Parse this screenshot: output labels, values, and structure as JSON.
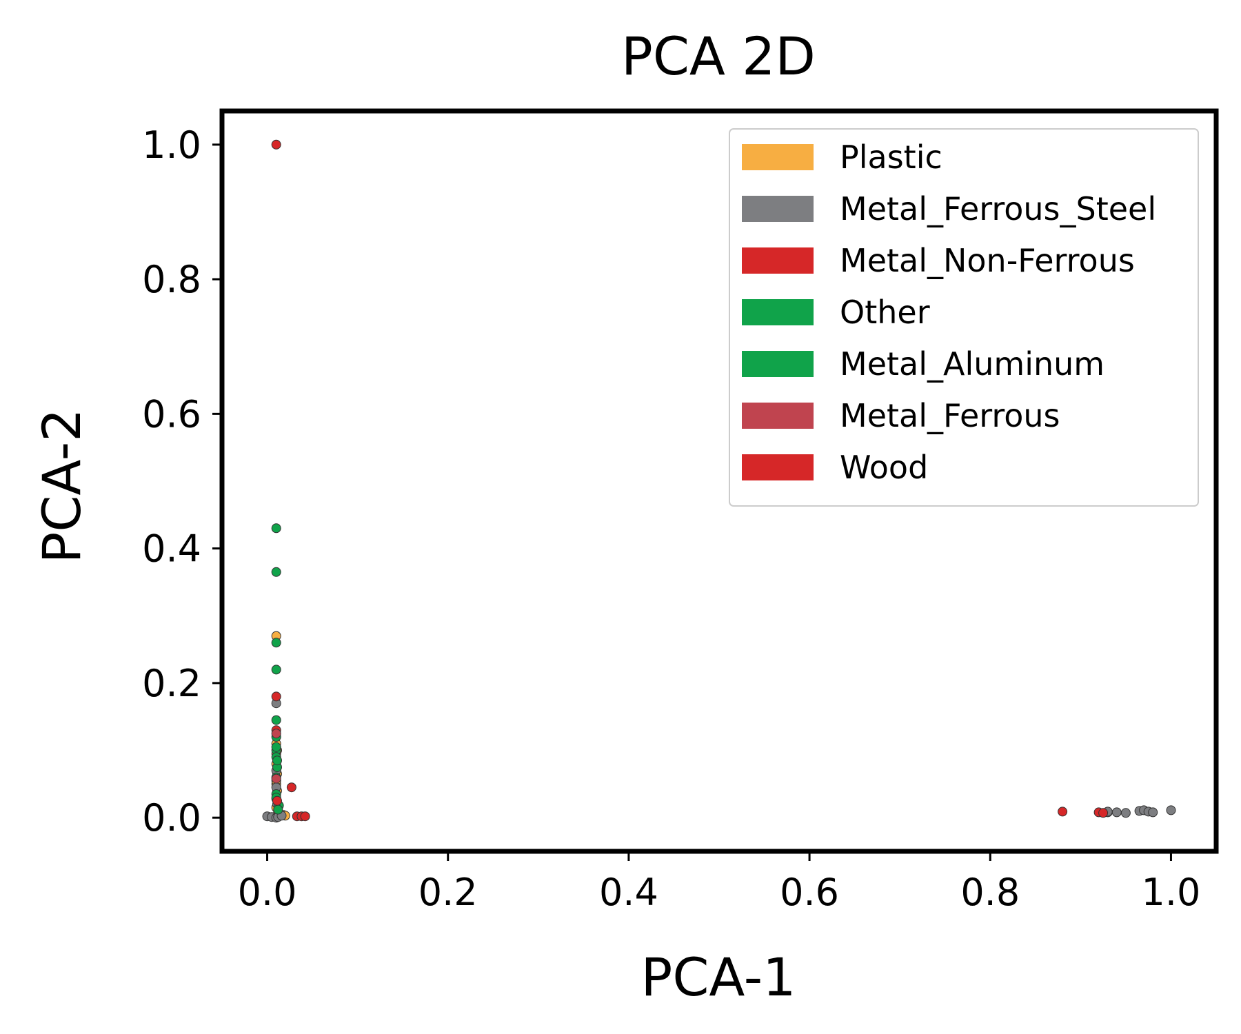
{
  "chart_data": {
    "type": "scatter",
    "title": "PCA 2D",
    "xlabel": "PCA-1",
    "ylabel": "PCA-2",
    "xlim": [
      -0.05,
      1.05
    ],
    "ylim": [
      -0.05,
      1.05
    ],
    "xticks": [
      "0.0",
      "0.2",
      "0.4",
      "0.6",
      "0.8",
      "1.0"
    ],
    "yticks": [
      "0.0",
      "0.2",
      "0.4",
      "0.6",
      "0.8",
      "1.0"
    ],
    "grid": false,
    "legend_position": "top-right",
    "legend": [
      {
        "label": "Plastic",
        "color": "#f7ae42"
      },
      {
        "label": "Metal_Ferrous_Steel",
        "color": "#7d7e81"
      },
      {
        "label": "Metal_Non-Ferrous",
        "color": "#d62728"
      },
      {
        "label": "Other",
        "color": "#10a34a"
      },
      {
        "label": "Metal_Aluminum",
        "color": "#10a34a"
      },
      {
        "label": "Metal_Ferrous",
        "color": "#c0444f"
      },
      {
        "label": "Wood",
        "color": "#d62728"
      }
    ],
    "series": [
      {
        "name": "Plastic",
        "color": "#f7ae42",
        "points": [
          [
            0.01,
            0.27
          ],
          [
            0.01,
            0.11
          ],
          [
            0.01,
            0.095
          ],
          [
            0.01,
            0.08
          ],
          [
            0.011,
            0.065
          ],
          [
            0.01,
            0.05
          ],
          [
            0.011,
            0.04
          ],
          [
            0.01,
            0.028
          ],
          [
            0.01,
            0.015
          ],
          [
            0.012,
            0.008
          ],
          [
            0.018,
            0.004
          ],
          [
            0.02,
            0.003
          ],
          [
            0.011,
            0.1
          ],
          [
            0.01,
            0.055
          ]
        ]
      },
      {
        "name": "Metal_Ferrous_Steel",
        "color": "#7d7e81",
        "points": [
          [
            0.01,
            0.17
          ],
          [
            0.01,
            0.07
          ],
          [
            0.01,
            0.045
          ],
          [
            0.011,
            0.02
          ],
          [
            0.0,
            0.002
          ],
          [
            0.005,
            0.001
          ],
          [
            0.01,
            0.0
          ],
          [
            0.012,
            0.001
          ],
          [
            0.016,
            0.003
          ],
          [
            0.93,
            0.008
          ],
          [
            0.94,
            0.008
          ],
          [
            0.95,
            0.007
          ],
          [
            0.965,
            0.01
          ],
          [
            0.97,
            0.011
          ],
          [
            0.975,
            0.009
          ],
          [
            0.98,
            0.008
          ],
          [
            1.0,
            0.011
          ],
          [
            0.93,
            0.009
          ]
        ]
      },
      {
        "name": "Metal_Non-Ferrous",
        "color": "#d62728",
        "points": [
          [
            0.01,
            1.0
          ],
          [
            0.01,
            0.18
          ],
          [
            0.01,
            0.13
          ],
          [
            0.027,
            0.045
          ],
          [
            0.033,
            0.002
          ],
          [
            0.038,
            0.002
          ],
          [
            0.042,
            0.002
          ],
          [
            0.88,
            0.009
          ],
          [
            0.92,
            0.008
          ]
        ]
      },
      {
        "name": "Other",
        "color": "#10a34a",
        "points": [
          [
            0.01,
            0.43
          ],
          [
            0.01,
            0.365
          ],
          [
            0.01,
            0.26
          ],
          [
            0.01,
            0.22
          ],
          [
            0.01,
            0.145
          ],
          [
            0.01,
            0.12
          ],
          [
            0.01,
            0.1
          ],
          [
            0.01,
            0.09
          ],
          [
            0.011,
            0.075
          ],
          [
            0.01,
            0.06
          ],
          [
            0.01,
            0.035
          ],
          [
            0.013,
            0.018
          ]
        ]
      },
      {
        "name": "Metal_Aluminum",
        "color": "#10a34a",
        "points": [
          [
            0.01,
            0.105
          ],
          [
            0.011,
            0.085
          ],
          [
            0.01,
            0.03
          ],
          [
            0.012,
            0.012
          ]
        ]
      },
      {
        "name": "Metal_Ferrous",
        "color": "#c0444f",
        "points": [
          [
            0.01,
            0.125
          ],
          [
            0.01,
            0.058
          ]
        ]
      },
      {
        "name": "Wood",
        "color": "#d62728",
        "points": [
          [
            0.011,
            0.025
          ],
          [
            0.925,
            0.007
          ]
        ]
      }
    ]
  }
}
